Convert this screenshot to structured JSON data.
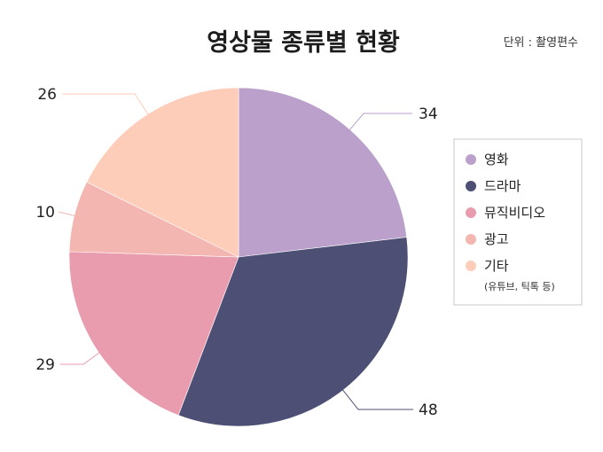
{
  "chart_data": {
    "type": "pie",
    "title": "영상물 종류별 현황",
    "unit_label": "단위 : 촬영편수",
    "categories": [
      "영화",
      "드라마",
      "뮤직비디오",
      "광고",
      "기타"
    ],
    "values": [
      34,
      48,
      29,
      10,
      26
    ],
    "colors": [
      "#bba0cb",
      "#4d4f75",
      "#e89cae",
      "#f4b6b1",
      "#fdcdb9"
    ],
    "start_angle_deg": 0,
    "direction": "clockwise",
    "legend": {
      "placement": "right",
      "items": [
        {
          "label": "영화"
        },
        {
          "label": "드라마"
        },
        {
          "label": "뮤직비디오"
        },
        {
          "label": "광고"
        },
        {
          "label": "기타",
          "note": "(유튜브, 틱톡 등)"
        }
      ]
    }
  }
}
